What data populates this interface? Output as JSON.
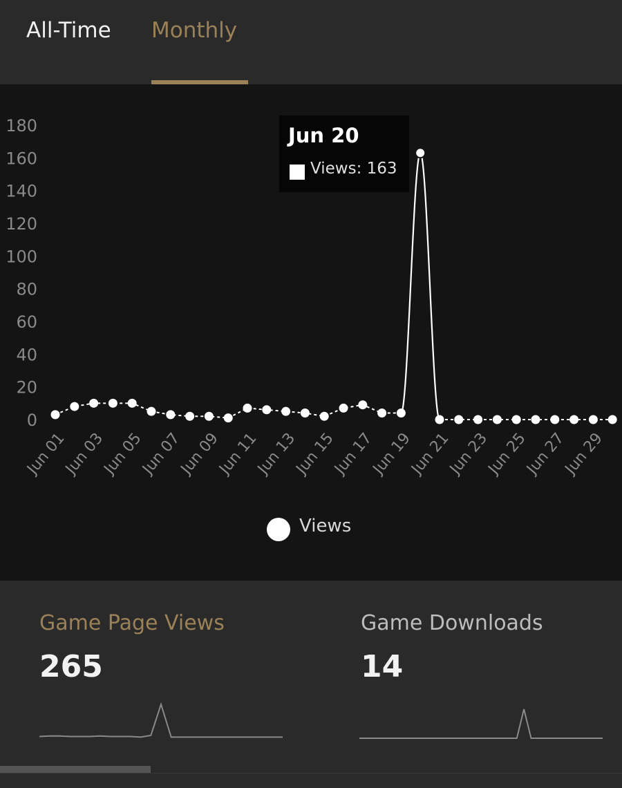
{
  "tabs": [
    {
      "label": "All-Time",
      "active": false
    },
    {
      "label": "Monthly",
      "active": true
    }
  ],
  "colors": {
    "accent": "#9b8157",
    "chart_bg": "#141414",
    "page_bg": "#2a2a2a",
    "series": "#ffffff",
    "axis_text": "#8a8a8a"
  },
  "chart_data": {
    "type": "line",
    "x": [
      "Jun 01",
      "Jun 02",
      "Jun 03",
      "Jun 04",
      "Jun 05",
      "Jun 06",
      "Jun 07",
      "Jun 08",
      "Jun 09",
      "Jun 10",
      "Jun 11",
      "Jun 12",
      "Jun 13",
      "Jun 14",
      "Jun 15",
      "Jun 16",
      "Jun 17",
      "Jun 18",
      "Jun 19",
      "Jun 20",
      "Jun 21",
      "Jun 22",
      "Jun 23",
      "Jun 24",
      "Jun 25",
      "Jun 26",
      "Jun 27",
      "Jun 28",
      "Jun 29",
      "Jun 30"
    ],
    "x_tick_labels": [
      "Jun 01",
      "Jun 03",
      "Jun 05",
      "Jun 07",
      "Jun 09",
      "Jun 11",
      "Jun 13",
      "Jun 15",
      "Jun 17",
      "Jun 19",
      "Jun 21",
      "Jun 23",
      "Jun 25",
      "Jun 27",
      "Jun 29"
    ],
    "series": [
      {
        "name": "Views",
        "values": [
          3,
          8,
          10,
          10,
          10,
          5,
          3,
          2,
          2,
          1,
          7,
          6,
          5,
          4,
          2,
          7,
          9,
          4,
          4,
          163,
          0,
          0,
          0,
          0,
          0,
          0,
          0,
          0,
          0,
          0
        ]
      }
    ],
    "ylim": [
      0,
      180
    ],
    "y_ticks": [
      0,
      20,
      40,
      60,
      80,
      100,
      120,
      140,
      160,
      180
    ],
    "legend": "bottom-center",
    "grid": false,
    "tooltip": {
      "title": "Jun 20",
      "text": "Views: 163",
      "index": 19
    }
  },
  "stats": [
    {
      "label": "Game Page Views",
      "value": "265"
    },
    {
      "label": "Game Downloads",
      "value": "14"
    }
  ],
  "sparklines": {
    "views": [
      3,
      4,
      4,
      3,
      3,
      3,
      4,
      3,
      3,
      3,
      2,
      5,
      60,
      2,
      2,
      2,
      2,
      2,
      2,
      2,
      2,
      2,
      2,
      2,
      2
    ],
    "downloads": [
      0,
      0,
      0,
      0,
      0,
      0,
      0,
      0,
      0,
      0,
      0,
      0,
      0,
      0,
      0,
      0,
      0,
      0,
      0,
      0,
      0,
      0,
      0,
      1,
      0,
      0,
      0,
      0,
      0,
      0,
      0,
      0,
      0,
      0,
      0
    ]
  }
}
